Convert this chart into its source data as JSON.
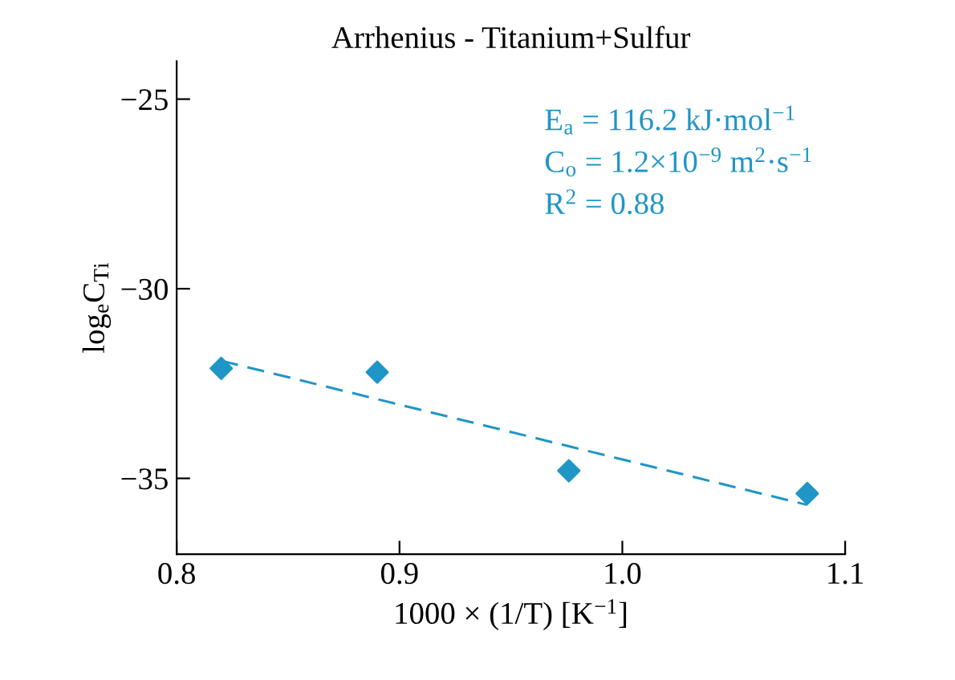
{
  "chart_data": {
    "type": "scatter",
    "title": "Arrhenius - Titanium+Sulfur",
    "xlabel": "1000 × (1/T) [K$^{−1}$]",
    "ylabel": "log$_{e}$C$_{Ti}$",
    "xlim": [
      0.8,
      1.1
    ],
    "xticks": [
      {
        "value": 0.8,
        "label": "0.8"
      },
      {
        "value": 0.9,
        "label": "0.9"
      },
      {
        "value": 1.0,
        "label": "1.0"
      },
      {
        "value": 1.1,
        "label": "1.1"
      }
    ],
    "ylim": [
      -37,
      -24
    ],
    "yticks": [
      {
        "value": -35,
        "label": "−35"
      },
      {
        "value": -30,
        "label": "−30"
      },
      {
        "value": -25,
        "label": "−25"
      }
    ],
    "grid": false,
    "legend": false,
    "annotations": [
      "E$_{a}$ = 116.2 kJ·mol$^{−1}$",
      "C$_{o}$ = 1.2×10$^{−9}$ m$^{2}$·s$^{−1}$",
      "R$^{2}$ = 0.88"
    ],
    "series": [
      {
        "color": "#1f96c6",
        "marker": "diamond",
        "x": [
          0.82,
          0.89,
          0.976,
          1.083
        ],
        "values": [
          -32.1,
          -32.2,
          -34.8,
          -35.4
        ]
      },
      {
        "type": "line",
        "color": "#1f96c6",
        "line_style": "dashed",
        "marker": "none",
        "x": [
          0.82,
          1.083
        ],
        "values": [
          -31.9,
          -35.7
        ]
      }
    ]
  }
}
